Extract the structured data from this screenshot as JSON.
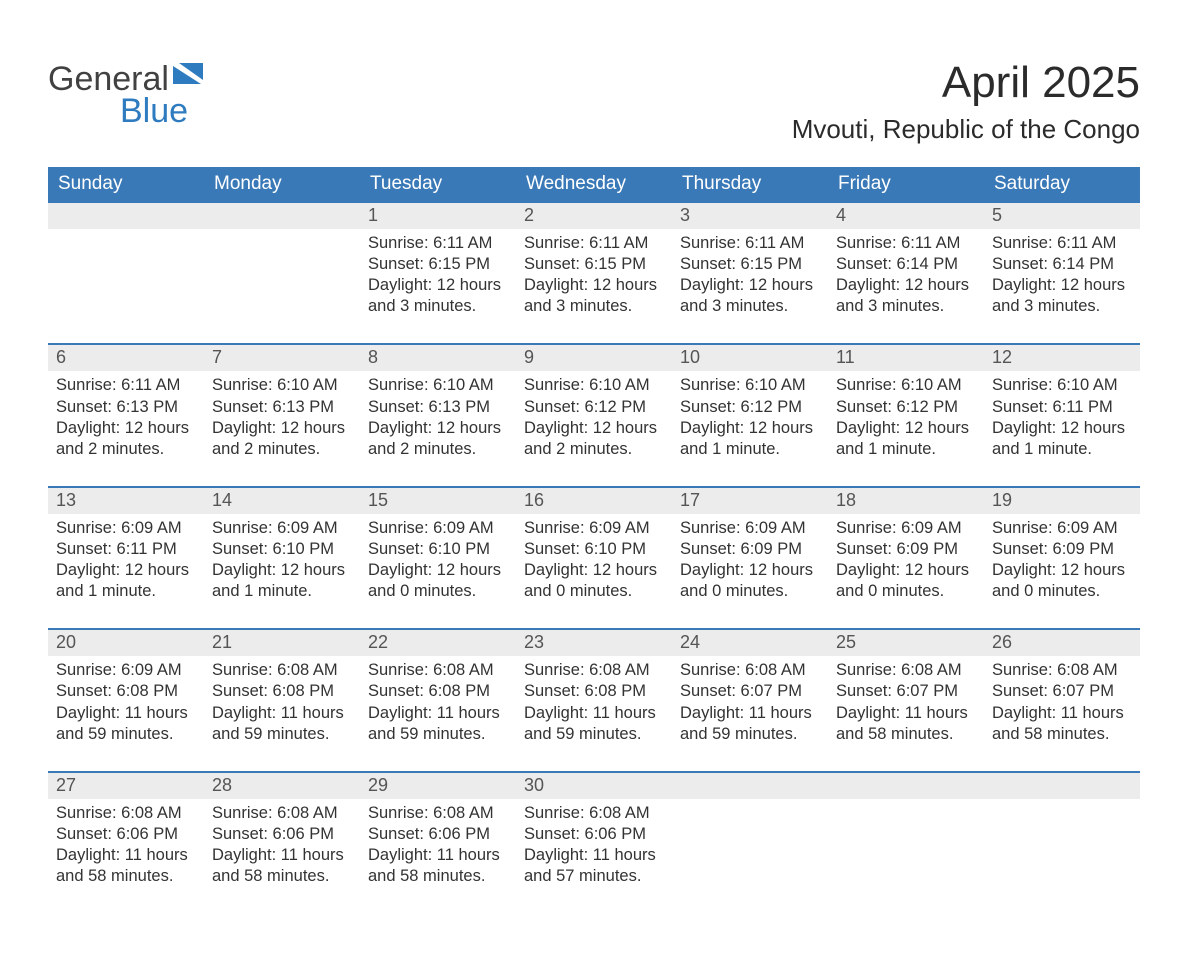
{
  "brand": {
    "general": "General",
    "blue": "Blue"
  },
  "title": "April 2025",
  "subtitle": "Mvouti, Republic of the Congo",
  "colors": {
    "header_bg": "#3a79b7",
    "header_text": "#ffffff",
    "daynum_bg": "#ececec",
    "week_border": "#3a79b7",
    "text": "#333333",
    "logo_blue": "#2f7bbf",
    "logo_gray": "#414141",
    "page_bg": "#ffffff"
  },
  "fields": {
    "sunrise_prefix": "Sunrise: ",
    "sunset_prefix": "Sunset: ",
    "daylight_prefix": "Daylight: "
  },
  "day_headers": [
    "Sunday",
    "Monday",
    "Tuesday",
    "Wednesday",
    "Thursday",
    "Friday",
    "Saturday"
  ],
  "weeks": [
    [
      null,
      null,
      {
        "n": "1",
        "sunrise": "6:11 AM",
        "sunset": "6:15 PM",
        "daylight_l1": "12 hours",
        "daylight_l2": "and 3 minutes."
      },
      {
        "n": "2",
        "sunrise": "6:11 AM",
        "sunset": "6:15 PM",
        "daylight_l1": "12 hours",
        "daylight_l2": "and 3 minutes."
      },
      {
        "n": "3",
        "sunrise": "6:11 AM",
        "sunset": "6:15 PM",
        "daylight_l1": "12 hours",
        "daylight_l2": "and 3 minutes."
      },
      {
        "n": "4",
        "sunrise": "6:11 AM",
        "sunset": "6:14 PM",
        "daylight_l1": "12 hours",
        "daylight_l2": "and 3 minutes."
      },
      {
        "n": "5",
        "sunrise": "6:11 AM",
        "sunset": "6:14 PM",
        "daylight_l1": "12 hours",
        "daylight_l2": "and 3 minutes."
      }
    ],
    [
      {
        "n": "6",
        "sunrise": "6:11 AM",
        "sunset": "6:13 PM",
        "daylight_l1": "12 hours",
        "daylight_l2": "and 2 minutes."
      },
      {
        "n": "7",
        "sunrise": "6:10 AM",
        "sunset": "6:13 PM",
        "daylight_l1": "12 hours",
        "daylight_l2": "and 2 minutes."
      },
      {
        "n": "8",
        "sunrise": "6:10 AM",
        "sunset": "6:13 PM",
        "daylight_l1": "12 hours",
        "daylight_l2": "and 2 minutes."
      },
      {
        "n": "9",
        "sunrise": "6:10 AM",
        "sunset": "6:12 PM",
        "daylight_l1": "12 hours",
        "daylight_l2": "and 2 minutes."
      },
      {
        "n": "10",
        "sunrise": "6:10 AM",
        "sunset": "6:12 PM",
        "daylight_l1": "12 hours",
        "daylight_l2": "and 1 minute."
      },
      {
        "n": "11",
        "sunrise": "6:10 AM",
        "sunset": "6:12 PM",
        "daylight_l1": "12 hours",
        "daylight_l2": "and 1 minute."
      },
      {
        "n": "12",
        "sunrise": "6:10 AM",
        "sunset": "6:11 PM",
        "daylight_l1": "12 hours",
        "daylight_l2": "and 1 minute."
      }
    ],
    [
      {
        "n": "13",
        "sunrise": "6:09 AM",
        "sunset": "6:11 PM",
        "daylight_l1": "12 hours",
        "daylight_l2": "and 1 minute."
      },
      {
        "n": "14",
        "sunrise": "6:09 AM",
        "sunset": "6:10 PM",
        "daylight_l1": "12 hours",
        "daylight_l2": "and 1 minute."
      },
      {
        "n": "15",
        "sunrise": "6:09 AM",
        "sunset": "6:10 PM",
        "daylight_l1": "12 hours",
        "daylight_l2": "and 0 minutes."
      },
      {
        "n": "16",
        "sunrise": "6:09 AM",
        "sunset": "6:10 PM",
        "daylight_l1": "12 hours",
        "daylight_l2": "and 0 minutes."
      },
      {
        "n": "17",
        "sunrise": "6:09 AM",
        "sunset": "6:09 PM",
        "daylight_l1": "12 hours",
        "daylight_l2": "and 0 minutes."
      },
      {
        "n": "18",
        "sunrise": "6:09 AM",
        "sunset": "6:09 PM",
        "daylight_l1": "12 hours",
        "daylight_l2": "and 0 minutes."
      },
      {
        "n": "19",
        "sunrise": "6:09 AM",
        "sunset": "6:09 PM",
        "daylight_l1": "12 hours",
        "daylight_l2": "and 0 minutes."
      }
    ],
    [
      {
        "n": "20",
        "sunrise": "6:09 AM",
        "sunset": "6:08 PM",
        "daylight_l1": "11 hours",
        "daylight_l2": "and 59 minutes."
      },
      {
        "n": "21",
        "sunrise": "6:08 AM",
        "sunset": "6:08 PM",
        "daylight_l1": "11 hours",
        "daylight_l2": "and 59 minutes."
      },
      {
        "n": "22",
        "sunrise": "6:08 AM",
        "sunset": "6:08 PM",
        "daylight_l1": "11 hours",
        "daylight_l2": "and 59 minutes."
      },
      {
        "n": "23",
        "sunrise": "6:08 AM",
        "sunset": "6:08 PM",
        "daylight_l1": "11 hours",
        "daylight_l2": "and 59 minutes."
      },
      {
        "n": "24",
        "sunrise": "6:08 AM",
        "sunset": "6:07 PM",
        "daylight_l1": "11 hours",
        "daylight_l2": "and 59 minutes."
      },
      {
        "n": "25",
        "sunrise": "6:08 AM",
        "sunset": "6:07 PM",
        "daylight_l1": "11 hours",
        "daylight_l2": "and 58 minutes."
      },
      {
        "n": "26",
        "sunrise": "6:08 AM",
        "sunset": "6:07 PM",
        "daylight_l1": "11 hours",
        "daylight_l2": "and 58 minutes."
      }
    ],
    [
      {
        "n": "27",
        "sunrise": "6:08 AM",
        "sunset": "6:06 PM",
        "daylight_l1": "11 hours",
        "daylight_l2": "and 58 minutes."
      },
      {
        "n": "28",
        "sunrise": "6:08 AM",
        "sunset": "6:06 PM",
        "daylight_l1": "11 hours",
        "daylight_l2": "and 58 minutes."
      },
      {
        "n": "29",
        "sunrise": "6:08 AM",
        "sunset": "6:06 PM",
        "daylight_l1": "11 hours",
        "daylight_l2": "and 58 minutes."
      },
      {
        "n": "30",
        "sunrise": "6:08 AM",
        "sunset": "6:06 PM",
        "daylight_l1": "11 hours",
        "daylight_l2": "and 57 minutes."
      },
      null,
      null,
      null
    ]
  ]
}
